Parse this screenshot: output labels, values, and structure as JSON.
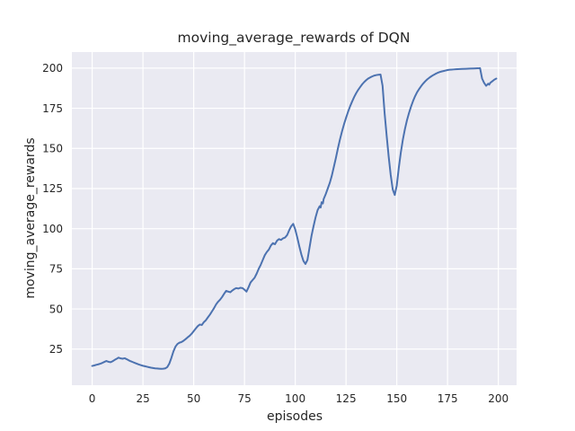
{
  "chart_data": {
    "type": "line",
    "title": "moving_average_rewards of DQN",
    "xlabel": "episodes",
    "ylabel": "moving_average_rewards",
    "x_ticks": [
      0,
      25,
      50,
      75,
      100,
      125,
      150,
      175,
      200
    ],
    "y_ticks": [
      25,
      50,
      75,
      100,
      125,
      150,
      175,
      200
    ],
    "xlim": [
      -10,
      209
    ],
    "ylim": [
      2.5,
      210
    ],
    "grid": true,
    "legend_position": "none",
    "line_color": "#4c72b0",
    "plot_bg": "#eaeaf2",
    "grid_color": "#ffffff",
    "text_color": "#262626",
    "series": [
      {
        "name": "moving_average_rewards",
        "points": [
          [
            0,
            14.5
          ],
          [
            1,
            14.8
          ],
          [
            2,
            15.2
          ],
          [
            3,
            15.5
          ],
          [
            4,
            15.9
          ],
          [
            5,
            16.4
          ],
          [
            6,
            17.0
          ],
          [
            7,
            17.6
          ],
          [
            8,
            17.1
          ],
          [
            9,
            16.8
          ],
          [
            10,
            17.4
          ],
          [
            11,
            18.2
          ],
          [
            12,
            18.9
          ],
          [
            13,
            19.7
          ],
          [
            14,
            19.2
          ],
          [
            15,
            19.0
          ],
          [
            16,
            19.3
          ],
          [
            17,
            18.7
          ],
          [
            18,
            18.0
          ],
          [
            19,
            17.4
          ],
          [
            20,
            16.9
          ],
          [
            21,
            16.4
          ],
          [
            22,
            15.9
          ],
          [
            23,
            15.4
          ],
          [
            24,
            15.0
          ],
          [
            25,
            14.6
          ],
          [
            26,
            14.3
          ],
          [
            27,
            14.0
          ],
          [
            28,
            13.7
          ],
          [
            29,
            13.4
          ],
          [
            30,
            13.2
          ],
          [
            31,
            13.0
          ],
          [
            32,
            12.9
          ],
          [
            33,
            12.8
          ],
          [
            34,
            12.7
          ],
          [
            35,
            12.8
          ],
          [
            36,
            13.0
          ],
          [
            37,
            13.8
          ],
          [
            38,
            16.0
          ],
          [
            39,
            19.5
          ],
          [
            40,
            23.5
          ],
          [
            41,
            26.5
          ],
          [
            42,
            28.2
          ],
          [
            43,
            29.0
          ],
          [
            44,
            29.4
          ],
          [
            45,
            30.2
          ],
          [
            46,
            31.2
          ],
          [
            47,
            32.3
          ],
          [
            48,
            33.3
          ],
          [
            49,
            34.6
          ],
          [
            50,
            36.2
          ],
          [
            51,
            37.8
          ],
          [
            52,
            39.3
          ],
          [
            53,
            40.3
          ],
          [
            54,
            40.0
          ],
          [
            55,
            41.8
          ],
          [
            56,
            43.0
          ],
          [
            57,
            44.8
          ],
          [
            58,
            46.5
          ],
          [
            59,
            48.5
          ],
          [
            60,
            50.5
          ],
          [
            61,
            52.8
          ],
          [
            62,
            54.5
          ],
          [
            63,
            55.8
          ],
          [
            64,
            57.5
          ],
          [
            65,
            59.5
          ],
          [
            66,
            61.3
          ],
          [
            67,
            60.8
          ],
          [
            68,
            60.4
          ],
          [
            69,
            61.5
          ],
          [
            70,
            62.4
          ],
          [
            71,
            63.0
          ],
          [
            72,
            62.7
          ],
          [
            73,
            63.2
          ],
          [
            74,
            63.0
          ],
          [
            75,
            62.0
          ],
          [
            76,
            60.8
          ],
          [
            77,
            63.5
          ],
          [
            78,
            66.5
          ],
          [
            79,
            68.0
          ],
          [
            80,
            69.5
          ],
          [
            81,
            72.0
          ],
          [
            82,
            75.0
          ],
          [
            83,
            77.5
          ],
          [
            84,
            80.5
          ],
          [
            85,
            83.5
          ],
          [
            86,
            85.5
          ],
          [
            87,
            87.0
          ],
          [
            88,
            89.5
          ],
          [
            89,
            91.0
          ],
          [
            90,
            90.3
          ],
          [
            91,
            92.5
          ],
          [
            92,
            93.5
          ],
          [
            93,
            93.0
          ],
          [
            94,
            94.0
          ],
          [
            95,
            94.5
          ],
          [
            96,
            96.0
          ],
          [
            97,
            99.0
          ],
          [
            98,
            101.5
          ],
          [
            99,
            103.0
          ],
          [
            100,
            99.5
          ],
          [
            101,
            94.5
          ],
          [
            102,
            89.0
          ],
          [
            103,
            84.0
          ],
          [
            104,
            80.0
          ],
          [
            105,
            78.0
          ],
          [
            106,
            80.5
          ],
          [
            107,
            88.0
          ],
          [
            108,
            95.5
          ],
          [
            109,
            101.5
          ],
          [
            110,
            107.0
          ],
          [
            111,
            111.5
          ],
          [
            112,
            114.0
          ],
          [
            112.5,
            113.2
          ],
          [
            113,
            116.5
          ],
          [
            113.6,
            115.7
          ],
          [
            114,
            118.5
          ],
          [
            115,
            121.5
          ],
          [
            116,
            125.0
          ],
          [
            117,
            128.5
          ],
          [
            118,
            133.0
          ],
          [
            119,
            138.5
          ],
          [
            120,
            144.0
          ],
          [
            121,
            150.0
          ],
          [
            122,
            155.5
          ],
          [
            123,
            160.5
          ],
          [
            124,
            165.0
          ],
          [
            125,
            169.0
          ],
          [
            126,
            172.8
          ],
          [
            127,
            176.2
          ],
          [
            128,
            179.2
          ],
          [
            129,
            182.0
          ],
          [
            130,
            184.4
          ],
          [
            131,
            186.5
          ],
          [
            132,
            188.3
          ],
          [
            133,
            190.0
          ],
          [
            134,
            191.4
          ],
          [
            135,
            192.6
          ],
          [
            136,
            193.6
          ],
          [
            137,
            194.3
          ],
          [
            138,
            194.9
          ],
          [
            139,
            195.4
          ],
          [
            140,
            195.7
          ],
          [
            141,
            195.9
          ],
          [
            142,
            196.0
          ],
          [
            143,
            189.0
          ],
          [
            144,
            172.0
          ],
          [
            145,
            158.0
          ],
          [
            146,
            145.0
          ],
          [
            147,
            133.5
          ],
          [
            148,
            124.5
          ],
          [
            149,
            121.0
          ],
          [
            150,
            127.0
          ],
          [
            151,
            138.0
          ],
          [
            152,
            147.5
          ],
          [
            153,
            155.5
          ],
          [
            154,
            162.0
          ],
          [
            155,
            167.5
          ],
          [
            156,
            172.0
          ],
          [
            157,
            176.0
          ],
          [
            158,
            179.5
          ],
          [
            159,
            182.5
          ],
          [
            160,
            185.0
          ],
          [
            161,
            187.0
          ],
          [
            162,
            188.8
          ],
          [
            163,
            190.4
          ],
          [
            164,
            191.8
          ],
          [
            165,
            193.0
          ],
          [
            166,
            194.0
          ],
          [
            167,
            194.9
          ],
          [
            168,
            195.7
          ],
          [
            169,
            196.4
          ],
          [
            170,
            197.0
          ],
          [
            171,
            197.5
          ],
          [
            172,
            197.9
          ],
          [
            173,
            198.2
          ],
          [
            174,
            198.5
          ],
          [
            175,
            198.8
          ],
          [
            176,
            199.0
          ],
          [
            177,
            199.1
          ],
          [
            178,
            199.2
          ],
          [
            179,
            199.3
          ],
          [
            180,
            199.4
          ],
          [
            182,
            199.5
          ],
          [
            184,
            199.6
          ],
          [
            186,
            199.7
          ],
          [
            188,
            199.8
          ],
          [
            190,
            199.9
          ],
          [
            191,
            200.0
          ],
          [
            192,
            193.5
          ],
          [
            193,
            190.8
          ],
          [
            194,
            189.0
          ],
          [
            195,
            190.3
          ],
          [
            195.5,
            189.7
          ],
          [
            196,
            190.8
          ],
          [
            197,
            191.8
          ],
          [
            198,
            192.8
          ],
          [
            199,
            193.5
          ]
        ]
      }
    ]
  }
}
